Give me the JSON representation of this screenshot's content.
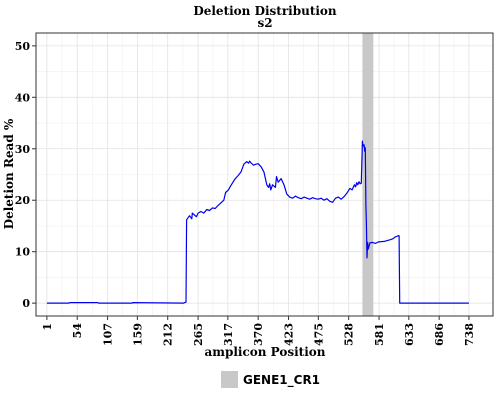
{
  "chart_data": {
    "type": "line",
    "title": "Deletion Distribution",
    "subtitle": "s2",
    "xlabel": "amplicon Position",
    "ylabel": "Deletion Read %",
    "xlim": [
      -18,
      780
    ],
    "ylim": [
      -2.5,
      52.5
    ],
    "x_ticks": [
      1,
      54,
      107,
      159,
      212,
      265,
      317,
      370,
      423,
      475,
      528,
      581,
      633,
      686,
      738
    ],
    "y_ticks": [
      0,
      10,
      20,
      30,
      40,
      50
    ],
    "grid": true,
    "line_color": "#0000ee",
    "highlight": {
      "label": "GENE1_CR1",
      "x_range": [
        552,
        571
      ],
      "color": "#c8c8c8"
    },
    "legend": {
      "position": "bottom",
      "entries": [
        "GENE1_CR1"
      ]
    },
    "series": [
      {
        "x": [
          1,
          40,
          41,
          90,
          91,
          150,
          151,
          240,
          244,
          245,
          250,
          254,
          255,
          260,
          262,
          265,
          270,
          275,
          280,
          285,
          290,
          295,
          300,
          305,
          310,
          313,
          318,
          322,
          326,
          330,
          335,
          340,
          345,
          350,
          353,
          355,
          358,
          362,
          366,
          370,
          375,
          380,
          385,
          388,
          390,
          392,
          395,
          400,
          402,
          405,
          410,
          415,
          420,
          425,
          430,
          435,
          440,
          445,
          450,
          455,
          460,
          465,
          470,
          475,
          480,
          485,
          490,
          495,
          500,
          505,
          510,
          515,
          520,
          525,
          530,
          534,
          538,
          540,
          542,
          544,
          546,
          548,
          550,
          552,
          553,
          555,
          556,
          557,
          558,
          559,
          560,
          561,
          562,
          565,
          570,
          575,
          580,
          590,
          600,
          605,
          610,
          615,
          616,
          617,
          620,
          640,
          680,
          738
        ],
        "y": [
          0,
          0,
          0.1,
          0.1,
          0,
          0,
          0.1,
          0,
          0.2,
          16.2,
          17.0,
          16.4,
          17.5,
          17.0,
          16.8,
          17.5,
          17.8,
          17.5,
          18.2,
          18.0,
          18.5,
          18.4,
          19.0,
          19.5,
          20.0,
          21.5,
          22.0,
          22.8,
          23.5,
          24.2,
          24.8,
          25.5,
          27.0,
          27.5,
          27.2,
          27.6,
          27.2,
          26.8,
          27.0,
          27.1,
          26.5,
          25.5,
          23.0,
          22.5,
          23.2,
          22.0,
          23.0,
          22.5,
          24.6,
          23.5,
          24.2,
          23.0,
          21.2,
          20.6,
          20.4,
          20.8,
          20.5,
          20.3,
          20.6,
          20.4,
          20.2,
          20.5,
          20.3,
          20.2,
          20.4,
          20.0,
          20.3,
          19.8,
          19.6,
          20.4,
          20.6,
          20.2,
          20.7,
          21.4,
          22.3,
          22.0,
          23.0,
          22.6,
          23.4,
          23.0,
          23.6,
          23.2,
          23.3,
          31.5,
          30.5,
          30.8,
          29.5,
          30.2,
          19.0,
          15.5,
          8.8,
          11.8,
          10.5,
          11.7,
          11.8,
          11.6,
          11.9,
          12.0,
          12.3,
          12.5,
          12.9,
          13.1,
          13.1,
          0,
          0,
          0,
          0,
          0
        ]
      }
    ]
  }
}
